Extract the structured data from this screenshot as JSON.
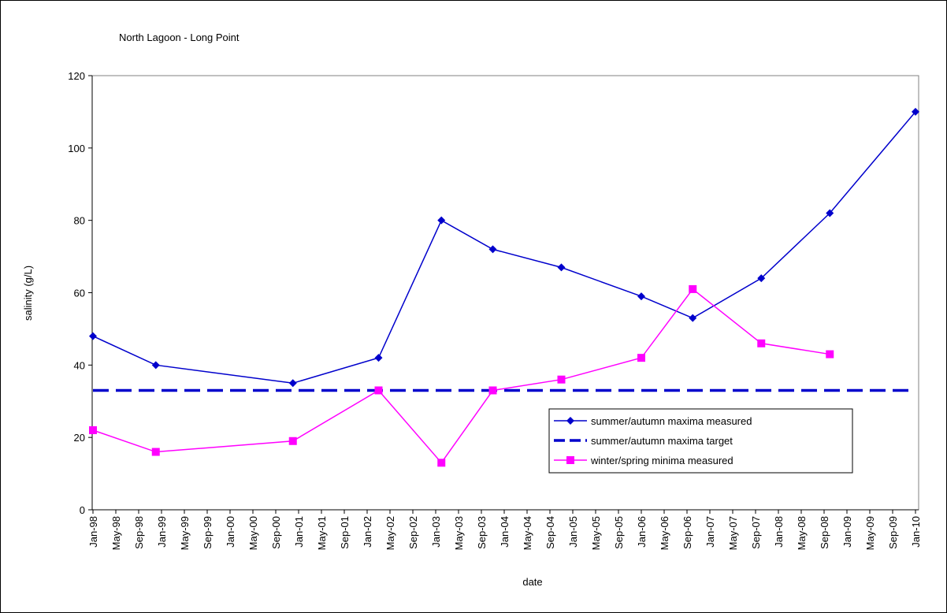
{
  "chart_data": {
    "type": "line",
    "title": "North Lagoon - Long Point",
    "x_label": "date",
    "y_label": "salinity (g/L)",
    "x": [
      "1998-01",
      "1998-12",
      "2000-12",
      "2002-03",
      "2003-02",
      "2003-11",
      "2004-11",
      "2006-01",
      "2006-10",
      "2007-10",
      "2008-10",
      "2010-01"
    ],
    "series": [
      {
        "name": "summer/autumn maxima measured",
        "color": "#0000cc",
        "marker": "diamond",
        "dashed": false,
        "values": [
          48,
          40,
          35,
          42,
          80,
          72,
          67,
          59,
          53,
          64,
          82,
          110
        ]
      },
      {
        "name": "summer/autumn maxima target",
        "color": "#0000cc",
        "marker": "none",
        "dashed": true,
        "values": [
          33,
          33,
          33,
          33,
          33,
          33,
          33,
          33,
          33,
          33,
          33,
          33
        ]
      },
      {
        "name": "winter/spring minima measured",
        "color": "#ff00ff",
        "marker": "square",
        "dashed": false,
        "values": [
          22,
          16,
          19,
          33,
          13,
          33,
          36,
          42,
          61,
          46,
          43,
          null
        ]
      }
    ],
    "xlim": [
      "1998-01",
      "2010-01"
    ],
    "xticks": [
      {
        "value": "1998-01",
        "label": "Jan-98"
      },
      {
        "value": "1998-05",
        "label": "May-98"
      },
      {
        "value": "1998-09",
        "label": "Sep-98"
      },
      {
        "value": "1999-01",
        "label": "Jan-99"
      },
      {
        "value": "1999-05",
        "label": "May-99"
      },
      {
        "value": "1999-09",
        "label": "Sep-99"
      },
      {
        "value": "2000-01",
        "label": "Jan-00"
      },
      {
        "value": "2000-05",
        "label": "May-00"
      },
      {
        "value": "2000-09",
        "label": "Sep-00"
      },
      {
        "value": "2001-01",
        "label": "Jan-01"
      },
      {
        "value": "2001-05",
        "label": "May-01"
      },
      {
        "value": "2001-09",
        "label": "Sep-01"
      },
      {
        "value": "2002-01",
        "label": "Jan-02"
      },
      {
        "value": "2002-05",
        "label": "May-02"
      },
      {
        "value": "2002-09",
        "label": "Sep-02"
      },
      {
        "value": "2003-01",
        "label": "Jan-03"
      },
      {
        "value": "2003-05",
        "label": "May-03"
      },
      {
        "value": "2003-09",
        "label": "Sep-03"
      },
      {
        "value": "2004-01",
        "label": "Jan-04"
      },
      {
        "value": "2004-05",
        "label": "May-04"
      },
      {
        "value": "2004-09",
        "label": "Sep-04"
      },
      {
        "value": "2005-01",
        "label": "Jan-05"
      },
      {
        "value": "2005-05",
        "label": "May-05"
      },
      {
        "value": "2005-09",
        "label": "Sep-05"
      },
      {
        "value": "2006-01",
        "label": "Jan-06"
      },
      {
        "value": "2006-05",
        "label": "May-06"
      },
      {
        "value": "2006-09",
        "label": "Sep-06"
      },
      {
        "value": "2007-01",
        "label": "Jan-07"
      },
      {
        "value": "2007-05",
        "label": "May-07"
      },
      {
        "value": "2007-09",
        "label": "Sep-07"
      },
      {
        "value": "2008-01",
        "label": "Jan-08"
      },
      {
        "value": "2008-05",
        "label": "May-08"
      },
      {
        "value": "2008-09",
        "label": "Sep-08"
      },
      {
        "value": "2009-01",
        "label": "Jan-09"
      },
      {
        "value": "2009-05",
        "label": "May-09"
      },
      {
        "value": "2009-09",
        "label": "Sep-09"
      },
      {
        "value": "2010-01",
        "label": "Jan-10"
      }
    ],
    "ylim": [
      0,
      120
    ],
    "yticks": [
      0,
      20,
      40,
      60,
      80,
      100,
      120
    ],
    "grid": false,
    "legend": "lower-right"
  }
}
